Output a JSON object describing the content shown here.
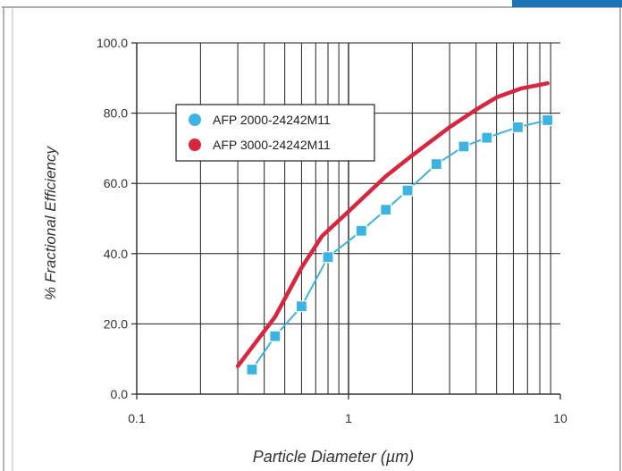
{
  "chart_data": {
    "type": "line",
    "xscale": "log",
    "xlim": [
      0.1,
      10
    ],
    "ylim": [
      0,
      100
    ],
    "xticks": [
      0.1,
      1,
      10
    ],
    "xtick_labels": [
      "0.1",
      "1",
      "10"
    ],
    "yticks": [
      0,
      20,
      40,
      60,
      80,
      100
    ],
    "ytick_labels": [
      "0.0",
      "20.0",
      "40.0",
      "60.0",
      "80.0",
      "100.0"
    ],
    "xlabel": "Particle Diameter (µm)",
    "ylabel": "% Fractional Efficiency",
    "grid": true,
    "legend_position": "upper-left",
    "series": [
      {
        "name": "AFP 2000-24242M11",
        "color": "#3bb4e3",
        "marker": "square",
        "x": [
          0.35,
          0.45,
          0.6,
          0.8,
          1.15,
          1.5,
          1.9,
          2.6,
          3.5,
          4.5,
          6.3,
          8.7
        ],
        "y": [
          7,
          16.5,
          25,
          39,
          46.5,
          52.5,
          58,
          65.5,
          70.5,
          73,
          76,
          78
        ]
      },
      {
        "name": "AFP 3000-24242M11",
        "color": "#d7263d",
        "marker": "none",
        "x": [
          0.3,
          0.45,
          0.6,
          0.75,
          1.0,
          1.5,
          2.0,
          3.0,
          4.0,
          5.0,
          6.5,
          8.7
        ],
        "y": [
          8,
          22,
          36,
          45,
          52,
          62,
          68,
          76,
          81,
          84.5,
          87,
          88.5
        ]
      }
    ]
  },
  "chrome": {
    "accent": "#1a73b8",
    "border": "#8f8f8f"
  }
}
